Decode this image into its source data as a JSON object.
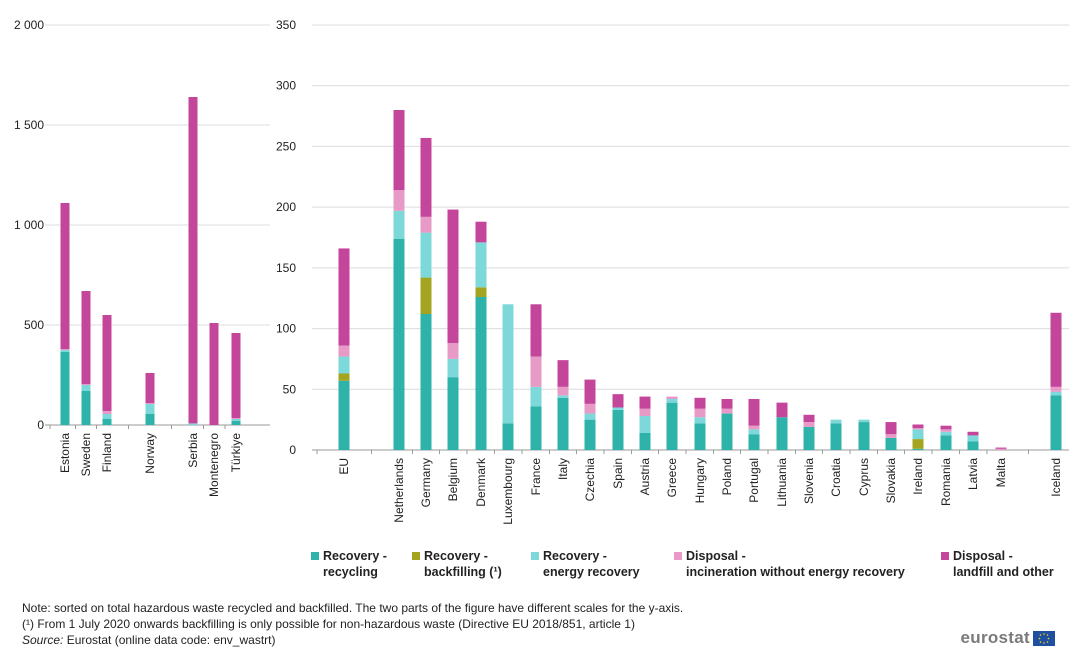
{
  "colors": {
    "recycling": "#2db3aa",
    "backfilling": "#a3a521",
    "energy_recovery": "#7dd9d9",
    "incineration": "#e89ac7",
    "landfill": "#c4469b"
  },
  "legend": [
    {
      "key": "recycling",
      "line1": "Recovery -",
      "line2": "recycling"
    },
    {
      "key": "backfilling",
      "line1": "Recovery -",
      "line2": "backfilling (¹)"
    },
    {
      "key": "energy_recovery",
      "line1": "Recovery -",
      "line2": "energy  recovery"
    },
    {
      "key": "incineration",
      "line1": "Disposal -",
      "line2": "incineration without energy recovery"
    },
    {
      "key": "landfill",
      "line1": "Disposal -",
      "line2": "landfill and other"
    }
  ],
  "notes": {
    "note": "Note: sorted on total hazardous  waste recycled and backfilled. The two parts of the figure have different scales for the y-axis.",
    "footnote": "(¹) From 1 July 2020 onwards backfilling is only possible for non-hazardous  waste (Directive EU 2018/851, article 1)",
    "source_label": "Source:",
    "source_text": " Eurostat (online data code: env_wastrt)"
  },
  "logo": {
    "text": "eurostat"
  },
  "chart_data": [
    {
      "type": "bar",
      "stacked": true,
      "ylim": [
        0,
        2000
      ],
      "yticks": [
        0,
        500,
        1000,
        1500,
        2000
      ],
      "ytick_labels": [
        "0",
        "500",
        "1 000",
        "1 500",
        "2 000"
      ],
      "grid": true,
      "groups": [
        [
          "Estonia",
          "Sweden",
          "Finland"
        ],
        [
          "Norway"
        ],
        [
          "Serbia",
          "Montenegro",
          "Türkiye"
        ]
      ],
      "categories": [
        "Estonia",
        "Sweden",
        "Finland",
        "Norway",
        "Serbia",
        "Montenegro",
        "Türkiye"
      ],
      "series": [
        {
          "key": "recycling",
          "values": [
            365,
            170,
            30,
            55,
            0,
            0,
            20
          ]
        },
        {
          "key": "backfilling",
          "values": [
            0,
            0,
            0,
            0,
            0,
            0,
            0
          ]
        },
        {
          "key": "energy_recovery",
          "values": [
            10,
            30,
            25,
            50,
            8,
            0,
            10
          ]
        },
        {
          "key": "incineration",
          "values": [
            5,
            5,
            15,
            5,
            0,
            0,
            5
          ]
        },
        {
          "key": "landfill",
          "values": [
            730,
            465,
            480,
            150,
            1632,
            510,
            425
          ]
        }
      ]
    },
    {
      "type": "bar",
      "stacked": true,
      "ylim": [
        0,
        350
      ],
      "yticks": [
        0,
        50,
        100,
        150,
        200,
        250,
        300,
        350
      ],
      "ytick_labels": [
        "0",
        "50",
        "100",
        "150",
        "200",
        "250",
        "300",
        "350"
      ],
      "grid": true,
      "groups": [
        [
          "EU"
        ],
        [
          "Netherlands",
          "Germany",
          "Belgium",
          "Denmark",
          "Luxembourg",
          "France",
          "Italy",
          "Czechia",
          "Spain",
          "Austria",
          "Greece",
          "Hungary",
          "Poland",
          "Portugal",
          "Lithuania",
          "Slovenia",
          "Croatia",
          "Cyprus",
          "Slovakia",
          "Ireland",
          "Romania",
          "Latvia",
          "Malta"
        ],
        [
          "Iceland"
        ]
      ],
      "categories": [
        "EU",
        "Netherlands",
        "Germany",
        "Belgium",
        "Denmark",
        "Luxembourg",
        "France",
        "Italy",
        "Czechia",
        "Spain",
        "Austria",
        "Greece",
        "Hungary",
        "Poland",
        "Portugal",
        "Lithuania",
        "Slovenia",
        "Croatia",
        "Cyprus",
        "Slovakia",
        "Ireland",
        "Romania",
        "Latvia",
        "Malta",
        "Iceland"
      ],
      "series": [
        {
          "key": "recycling",
          "values": [
            57,
            174,
            112,
            60,
            126,
            22,
            36,
            43,
            25,
            33,
            14,
            39,
            22,
            30,
            13,
            27,
            19,
            22,
            23,
            10,
            1,
            12,
            7,
            0,
            45
          ]
        },
        {
          "key": "backfilling",
          "values": [
            6,
            0,
            30,
            0,
            8,
            0,
            0,
            0,
            0,
            0,
            0,
            0,
            0,
            0,
            0,
            0,
            0,
            0,
            0,
            0,
            8,
            0,
            0,
            0,
            0
          ]
        },
        {
          "key": "energy_recovery",
          "values": [
            14,
            23,
            37,
            15,
            37,
            98,
            16,
            2,
            5,
            2,
            14,
            3,
            5,
            0,
            4,
            0,
            0,
            3,
            2,
            0,
            8,
            3,
            5,
            0,
            3
          ]
        },
        {
          "key": "incineration",
          "values": [
            9,
            17,
            13,
            13,
            0,
            0,
            25,
            7,
            8,
            0,
            6,
            2,
            7,
            4,
            3,
            0,
            4,
            0,
            0,
            3,
            1,
            2,
            0,
            1,
            4
          ]
        },
        {
          "key": "landfill",
          "values": [
            80,
            66,
            65,
            110,
            17,
            0,
            43,
            22,
            20,
            11,
            10,
            0,
            9,
            8,
            22,
            12,
            6,
            0,
            0,
            10,
            3,
            3,
            3,
            1,
            61
          ]
        }
      ]
    }
  ]
}
